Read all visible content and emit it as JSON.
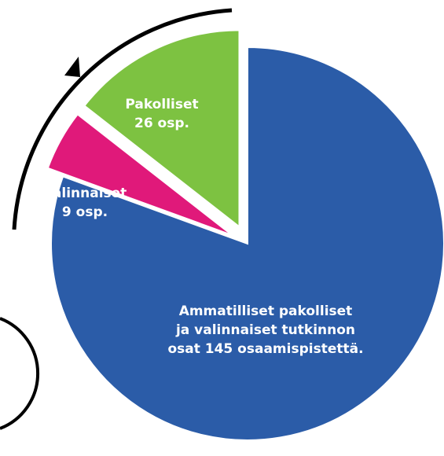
{
  "chart_data": {
    "type": "pie",
    "values": [
      145,
      9,
      26
    ],
    "colors": [
      "#2b5ca8",
      "#e0197a",
      "#7dc241"
    ],
    "labels": [
      [
        "Ammatilliset pakolliset",
        "ja valinnaiset tutkinnon",
        "osat 145 osaamispistettä."
      ],
      [
        "Valinnaiset",
        "9 osp."
      ],
      [
        "Pakolliset",
        "26 osp."
      ]
    ]
  }
}
